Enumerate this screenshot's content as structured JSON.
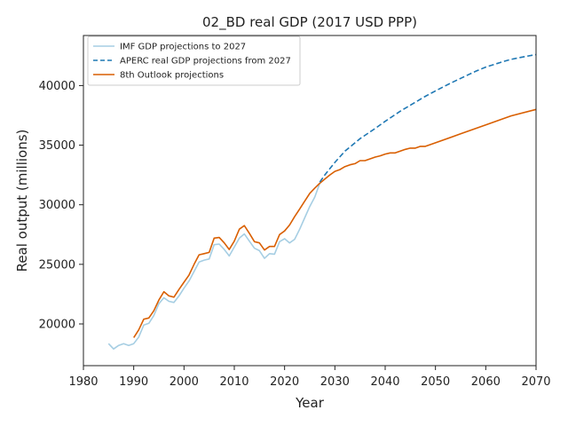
{
  "chart_data": {
    "type": "line",
    "title": "02_BD real GDP (2017 USD PPP)",
    "xlabel": "Year",
    "ylabel": "Real output (millions)",
    "xlim": [
      1980,
      2070
    ],
    "ylim": [
      16500,
      44200
    ],
    "xticks": [
      1980,
      1990,
      2000,
      2010,
      2020,
      2030,
      2040,
      2050,
      2060,
      2070
    ],
    "yticks": [
      20000,
      25000,
      30000,
      35000,
      40000
    ],
    "grid": false,
    "legend_position": "top-left",
    "series": [
      {
        "name": "IMF GDP projections to 2027",
        "color": "#a6cee3",
        "style": "solid",
        "points": [
          [
            1985,
            18350
          ],
          [
            1986,
            17900
          ],
          [
            1987,
            18200
          ],
          [
            1988,
            18350
          ],
          [
            1989,
            18200
          ],
          [
            1990,
            18350
          ],
          [
            1991,
            18900
          ],
          [
            1992,
            19900
          ],
          [
            1993,
            20050
          ],
          [
            1994,
            20700
          ],
          [
            1995,
            21700
          ],
          [
            1996,
            22200
          ],
          [
            1997,
            21900
          ],
          [
            1998,
            21800
          ],
          [
            1999,
            22350
          ],
          [
            2000,
            23000
          ],
          [
            2001,
            23600
          ],
          [
            2002,
            24400
          ],
          [
            2003,
            25200
          ],
          [
            2004,
            25350
          ],
          [
            2005,
            25450
          ],
          [
            2006,
            26650
          ],
          [
            2007,
            26700
          ],
          [
            2008,
            26250
          ],
          [
            2009,
            25700
          ],
          [
            2010,
            26450
          ],
          [
            2011,
            27200
          ],
          [
            2012,
            27550
          ],
          [
            2013,
            26950
          ],
          [
            2014,
            26350
          ],
          [
            2015,
            26150
          ],
          [
            2016,
            25500
          ],
          [
            2017,
            25900
          ],
          [
            2018,
            25850
          ],
          [
            2019,
            26900
          ],
          [
            2020,
            27150
          ],
          [
            2021,
            26800
          ],
          [
            2022,
            27100
          ],
          [
            2023,
            27950
          ],
          [
            2024,
            28900
          ],
          [
            2025,
            29850
          ],
          [
            2026,
            30650
          ],
          [
            2027,
            31800
          ]
        ]
      },
      {
        "name": "APERC real GDP projections from 2027",
        "color": "#1f78b4",
        "style": "dashed",
        "points": [
          [
            2027,
            31900
          ],
          [
            2028,
            32500
          ],
          [
            2030,
            33550
          ],
          [
            2032,
            34500
          ],
          [
            2035,
            35550
          ],
          [
            2038,
            36400
          ],
          [
            2040,
            37000
          ],
          [
            2043,
            37850
          ],
          [
            2045,
            38350
          ],
          [
            2048,
            39100
          ],
          [
            2050,
            39550
          ],
          [
            2053,
            40200
          ],
          [
            2055,
            40600
          ],
          [
            2058,
            41200
          ],
          [
            2060,
            41550
          ],
          [
            2063,
            41950
          ],
          [
            2065,
            42200
          ],
          [
            2068,
            42450
          ],
          [
            2070,
            42600
          ]
        ]
      },
      {
        "name": "8th Outlook projections",
        "color": "#d95f02",
        "style": "solid",
        "points": [
          [
            1990,
            18850
          ],
          [
            1991,
            19500
          ],
          [
            1992,
            20400
          ],
          [
            1993,
            20500
          ],
          [
            1994,
            21100
          ],
          [
            1995,
            22000
          ],
          [
            1996,
            22700
          ],
          [
            1997,
            22350
          ],
          [
            1998,
            22250
          ],
          [
            1999,
            22900
          ],
          [
            2000,
            23500
          ],
          [
            2001,
            24100
          ],
          [
            2002,
            25000
          ],
          [
            2003,
            25800
          ],
          [
            2004,
            25900
          ],
          [
            2005,
            26000
          ],
          [
            2006,
            27200
          ],
          [
            2007,
            27250
          ],
          [
            2008,
            26800
          ],
          [
            2009,
            26250
          ],
          [
            2010,
            26950
          ],
          [
            2011,
            27950
          ],
          [
            2012,
            28250
          ],
          [
            2013,
            27600
          ],
          [
            2014,
            26900
          ],
          [
            2015,
            26800
          ],
          [
            2016,
            26200
          ],
          [
            2017,
            26500
          ],
          [
            2018,
            26500
          ],
          [
            2019,
            27500
          ],
          [
            2020,
            27800
          ],
          [
            2021,
            28300
          ],
          [
            2022,
            29000
          ],
          [
            2023,
            29650
          ],
          [
            2024,
            30300
          ],
          [
            2025,
            30950
          ],
          [
            2026,
            31400
          ],
          [
            2027,
            31800
          ],
          [
            2028,
            32150
          ],
          [
            2029,
            32500
          ],
          [
            2030,
            32800
          ],
          [
            2031,
            32950
          ],
          [
            2032,
            33200
          ],
          [
            2033,
            33350
          ],
          [
            2034,
            33450
          ],
          [
            2035,
            33700
          ],
          [
            2036,
            33700
          ],
          [
            2037,
            33850
          ],
          [
            2038,
            34000
          ],
          [
            2039,
            34100
          ],
          [
            2040,
            34250
          ],
          [
            2041,
            34350
          ],
          [
            2042,
            34350
          ],
          [
            2043,
            34500
          ],
          [
            2044,
            34650
          ],
          [
            2045,
            34750
          ],
          [
            2046,
            34750
          ],
          [
            2047,
            34900
          ],
          [
            2048,
            34900
          ],
          [
            2049,
            35050
          ],
          [
            2050,
            35200
          ],
          [
            2055,
            35950
          ],
          [
            2060,
            36700
          ],
          [
            2065,
            37450
          ],
          [
            2070,
            38000
          ]
        ]
      }
    ]
  }
}
